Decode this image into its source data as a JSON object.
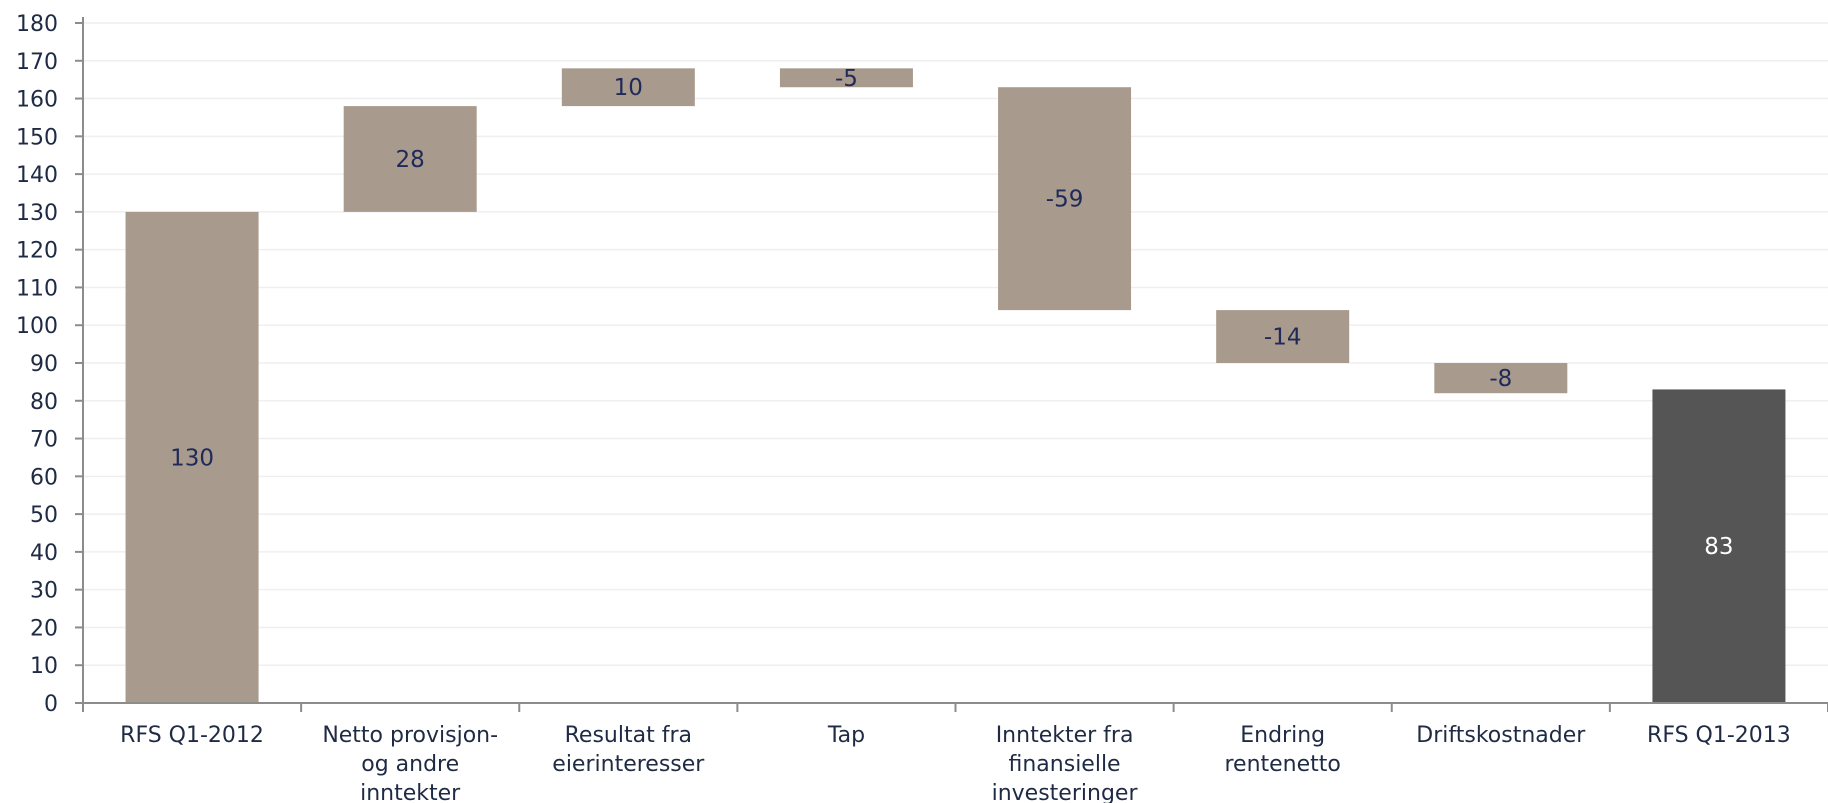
{
  "chart_data": {
    "type": "bar",
    "subtype": "waterfall",
    "title": "",
    "xlabel": "",
    "ylabel": "",
    "ylim": [
      0,
      180
    ],
    "y_ticks": [
      0,
      10,
      20,
      30,
      40,
      50,
      60,
      70,
      80,
      90,
      100,
      110,
      120,
      130,
      140,
      150,
      160,
      170,
      180
    ],
    "grid": true,
    "categories": [
      [
        "RFS Q1-2012"
      ],
      [
        "Netto provisjon-",
        "og andre",
        "inntekter"
      ],
      [
        "Resultat fra",
        "eierinteresser"
      ],
      [
        "Tap"
      ],
      [
        "Inntekter fra",
        "finansielle",
        "investeringer"
      ],
      [
        "Endring",
        "rentenetto"
      ],
      [
        "Driftskostnader"
      ],
      [
        "RFS Q1-2013"
      ]
    ],
    "bars": [
      {
        "kind": "total",
        "start": 0,
        "end": 130,
        "label": "130"
      },
      {
        "kind": "delta",
        "start": 130,
        "end": 158,
        "label": "28"
      },
      {
        "kind": "delta",
        "start": 158,
        "end": 168,
        "label": "10"
      },
      {
        "kind": "delta",
        "start": 168,
        "end": 163,
        "label": "-5"
      },
      {
        "kind": "delta",
        "start": 163,
        "end": 104,
        "label": "-59"
      },
      {
        "kind": "delta",
        "start": 104,
        "end": 90,
        "label": "-14"
      },
      {
        "kind": "delta",
        "start": 90,
        "end": 82,
        "label": "-8"
      },
      {
        "kind": "final",
        "start": 0,
        "end": 83,
        "label": "83"
      }
    ],
    "colors": {
      "bar": "#a89a8c",
      "final_bar": "#555555",
      "label": "#1f2a5a",
      "final_label": "#ffffff",
      "axis": "#8c8c8c",
      "grid": "#efefef",
      "tick_text": "#1f2a44"
    }
  }
}
